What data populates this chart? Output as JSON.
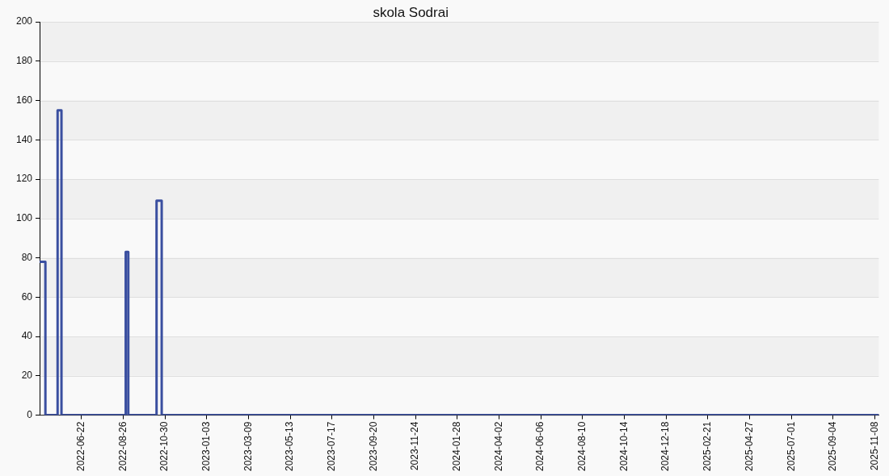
{
  "chart_data": {
    "type": "step",
    "title": "skola Sodrai",
    "x": [
      "2022-04-18",
      "2022-04-27",
      "2022-05-16",
      "2022-05-22",
      "2022-08-30",
      "2022-09-03",
      "2022-10-17",
      "2022-10-25",
      "2025-11-14"
    ],
    "series": [
      {
        "color": "#3a4fa0",
        "values": [
          78,
          0,
          155,
          0,
          83,
          0,
          109,
          0,
          0
        ]
      }
    ],
    "xlim": [
      "2022-04-18",
      "2025-11-14"
    ],
    "xticks": [
      "2022-06-22",
      "2022-08-26",
      "2022-10-30",
      "2023-01-03",
      "2023-03-09",
      "2023-05-13",
      "2023-07-17",
      "2023-09-20",
      "2023-11-24",
      "2024-01-28",
      "2024-04-02",
      "2024-06-06",
      "2024-08-10",
      "2024-10-14",
      "2024-12-18",
      "2025-02-21",
      "2025-04-27",
      "2025-07-01",
      "2025-09-04",
      "2025-11-08"
    ],
    "ylim": [
      0,
      200
    ],
    "yticks": [
      0,
      20,
      40,
      60,
      80,
      100,
      120,
      140,
      160,
      180,
      200
    ],
    "grid": "y",
    "line_style": "solid"
  }
}
